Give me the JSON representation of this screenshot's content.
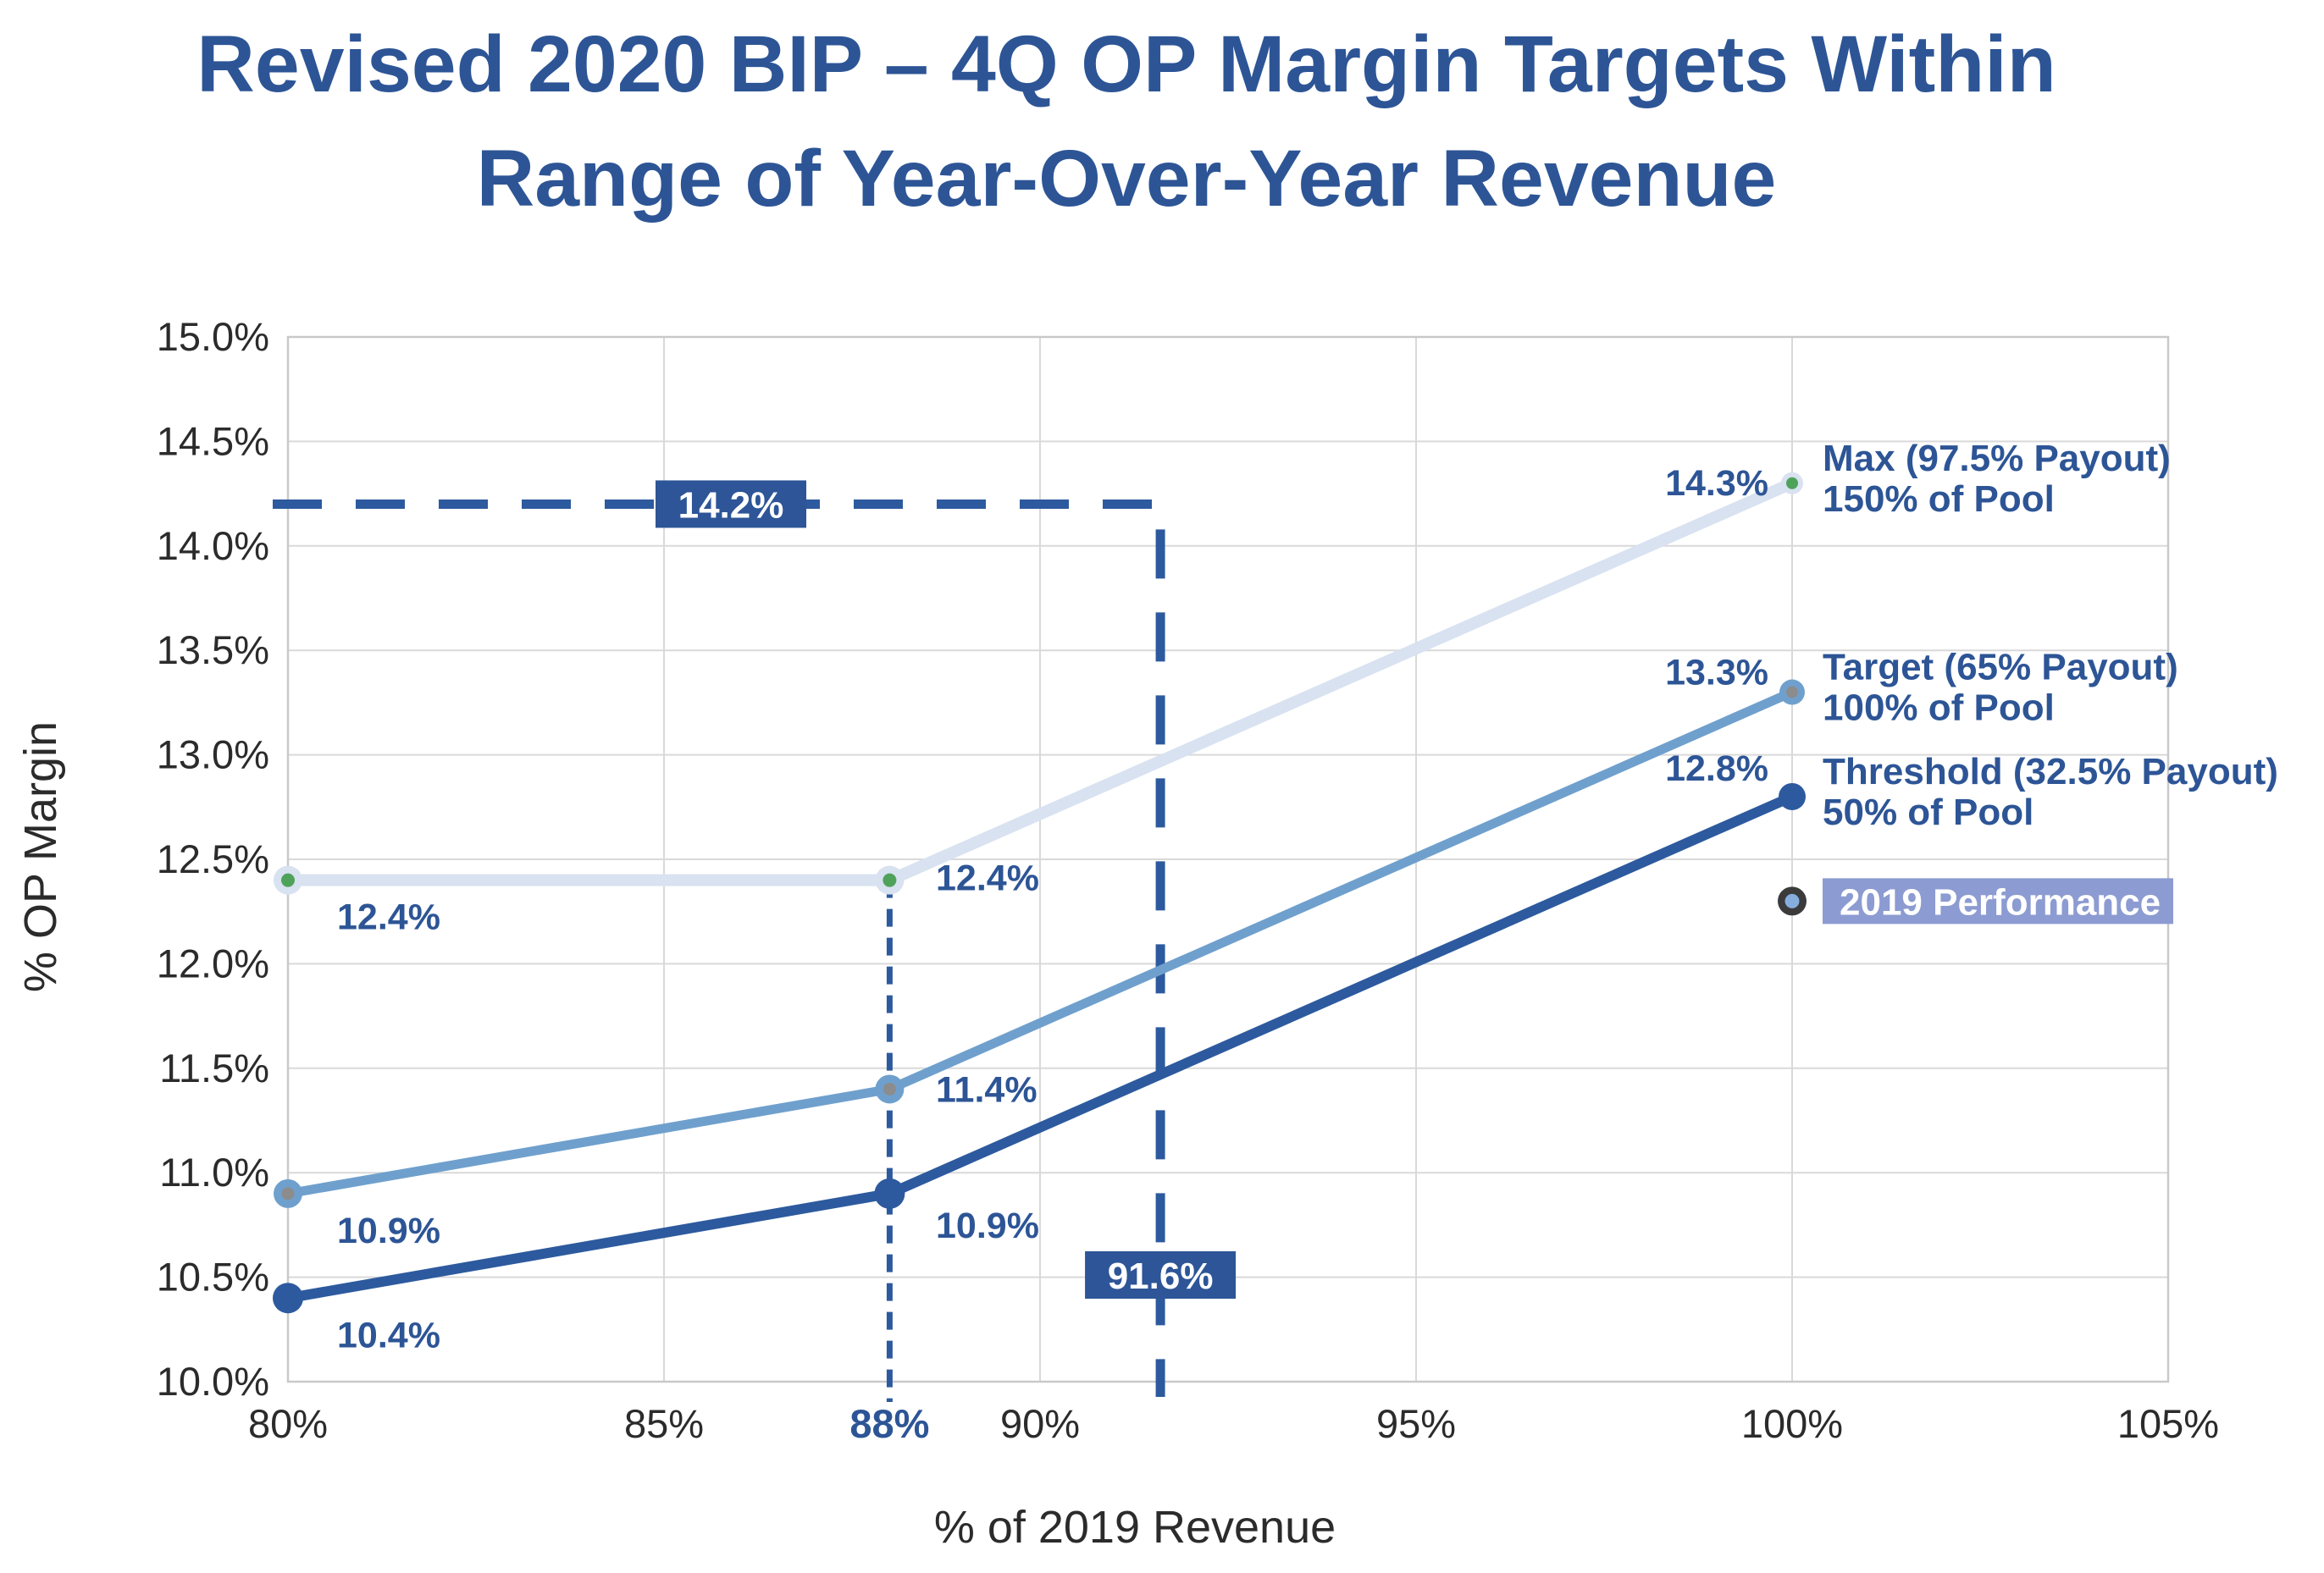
{
  "title": {
    "line1": "Revised 2020 BIP – 4Q OP Margin Targets Within",
    "line2": "Range of Year-Over-Year Revenue"
  },
  "colors": {
    "title_blue": "#2D5596",
    "dark_blue": "#2D5A9E",
    "medium_blue": "#6FA0CD",
    "light_blue": "#D8E2F0",
    "green_dot": "#4FA25A",
    "gray_dot": "#8C8C8C",
    "performance_ring": "#3B3B3B",
    "performance_center": "#85AEDE",
    "performance_box": "#8C9BD1",
    "annotation_box": "#2D5597",
    "gridline": "#D9D9D9",
    "axis_text": "#2B2B2B"
  },
  "chart_data": {
    "type": "line",
    "title": "Revised 2020 BIP – 4Q OP Margin Targets Within Range of Year-Over-Year Revenue",
    "xlabel": "% of 2019 Revenue",
    "ylabel": "% OP Margin",
    "xlim": [
      80,
      105
    ],
    "ylim": [
      10,
      15
    ],
    "grid": true,
    "x_ticks": {
      "values": [
        80,
        85,
        88,
        90,
        95,
        100,
        105
      ],
      "labels": [
        "80%",
        "85%",
        "88%",
        "90%",
        "95%",
        "100%",
        "105%"
      ],
      "emphasized": "88%"
    },
    "y_ticks": {
      "values": [
        15.0,
        14.5,
        14.0,
        13.5,
        13.0,
        12.5,
        12.0,
        11.5,
        11.0,
        10.5,
        10.0
      ],
      "labels": [
        "15.0%",
        "14.5%",
        "14.0%",
        "13.5%",
        "13.0%",
        "12.5%",
        "12.0%",
        "11.5%",
        "11.0%",
        "10.5%",
        "10.0%"
      ]
    },
    "series": [
      {
        "name": "Max (97.5% Payout)",
        "pool": "150% of Pool",
        "x": [
          80,
          88,
          100
        ],
        "y": [
          12.4,
          12.4,
          14.3
        ],
        "point_labels": [
          "12.4%",
          "12.4%",
          "14.3%"
        ],
        "color": "#D8E2F0",
        "marker_center_color": "#4FA25A"
      },
      {
        "name": "Target (65% Payout)",
        "pool": "100% of Pool",
        "x": [
          80,
          88,
          100
        ],
        "y": [
          10.9,
          11.4,
          13.3
        ],
        "point_labels": [
          "10.9%",
          "11.4%",
          "13.3%"
        ],
        "color": "#6FA0CD",
        "marker_center_color": "#8C8C8C"
      },
      {
        "name": "Threshold (32.5% Payout)",
        "pool": "50% of Pool",
        "x": [
          80,
          88,
          100
        ],
        "y": [
          10.4,
          10.9,
          12.8
        ],
        "point_labels": [
          "10.4%",
          "10.9%",
          "12.8%"
        ],
        "color": "#2D5A9E",
        "marker_center_color": ""
      }
    ],
    "performance_point": {
      "label": "2019 Performance",
      "x": 100,
      "y": 12.3
    },
    "annotations": {
      "h_dash": {
        "y": 14.2,
        "label": "14.2%",
        "x_from": 80,
        "x_to": 91.6
      },
      "v_dash_88": {
        "x": 88,
        "y_from": 12.4,
        "y_to": 10
      },
      "v_dash_916": {
        "x": 91.6,
        "label": "91.6%",
        "y_from": 14.2,
        "y_to": 10
      }
    },
    "legend_position": "right-of-endpoints"
  }
}
